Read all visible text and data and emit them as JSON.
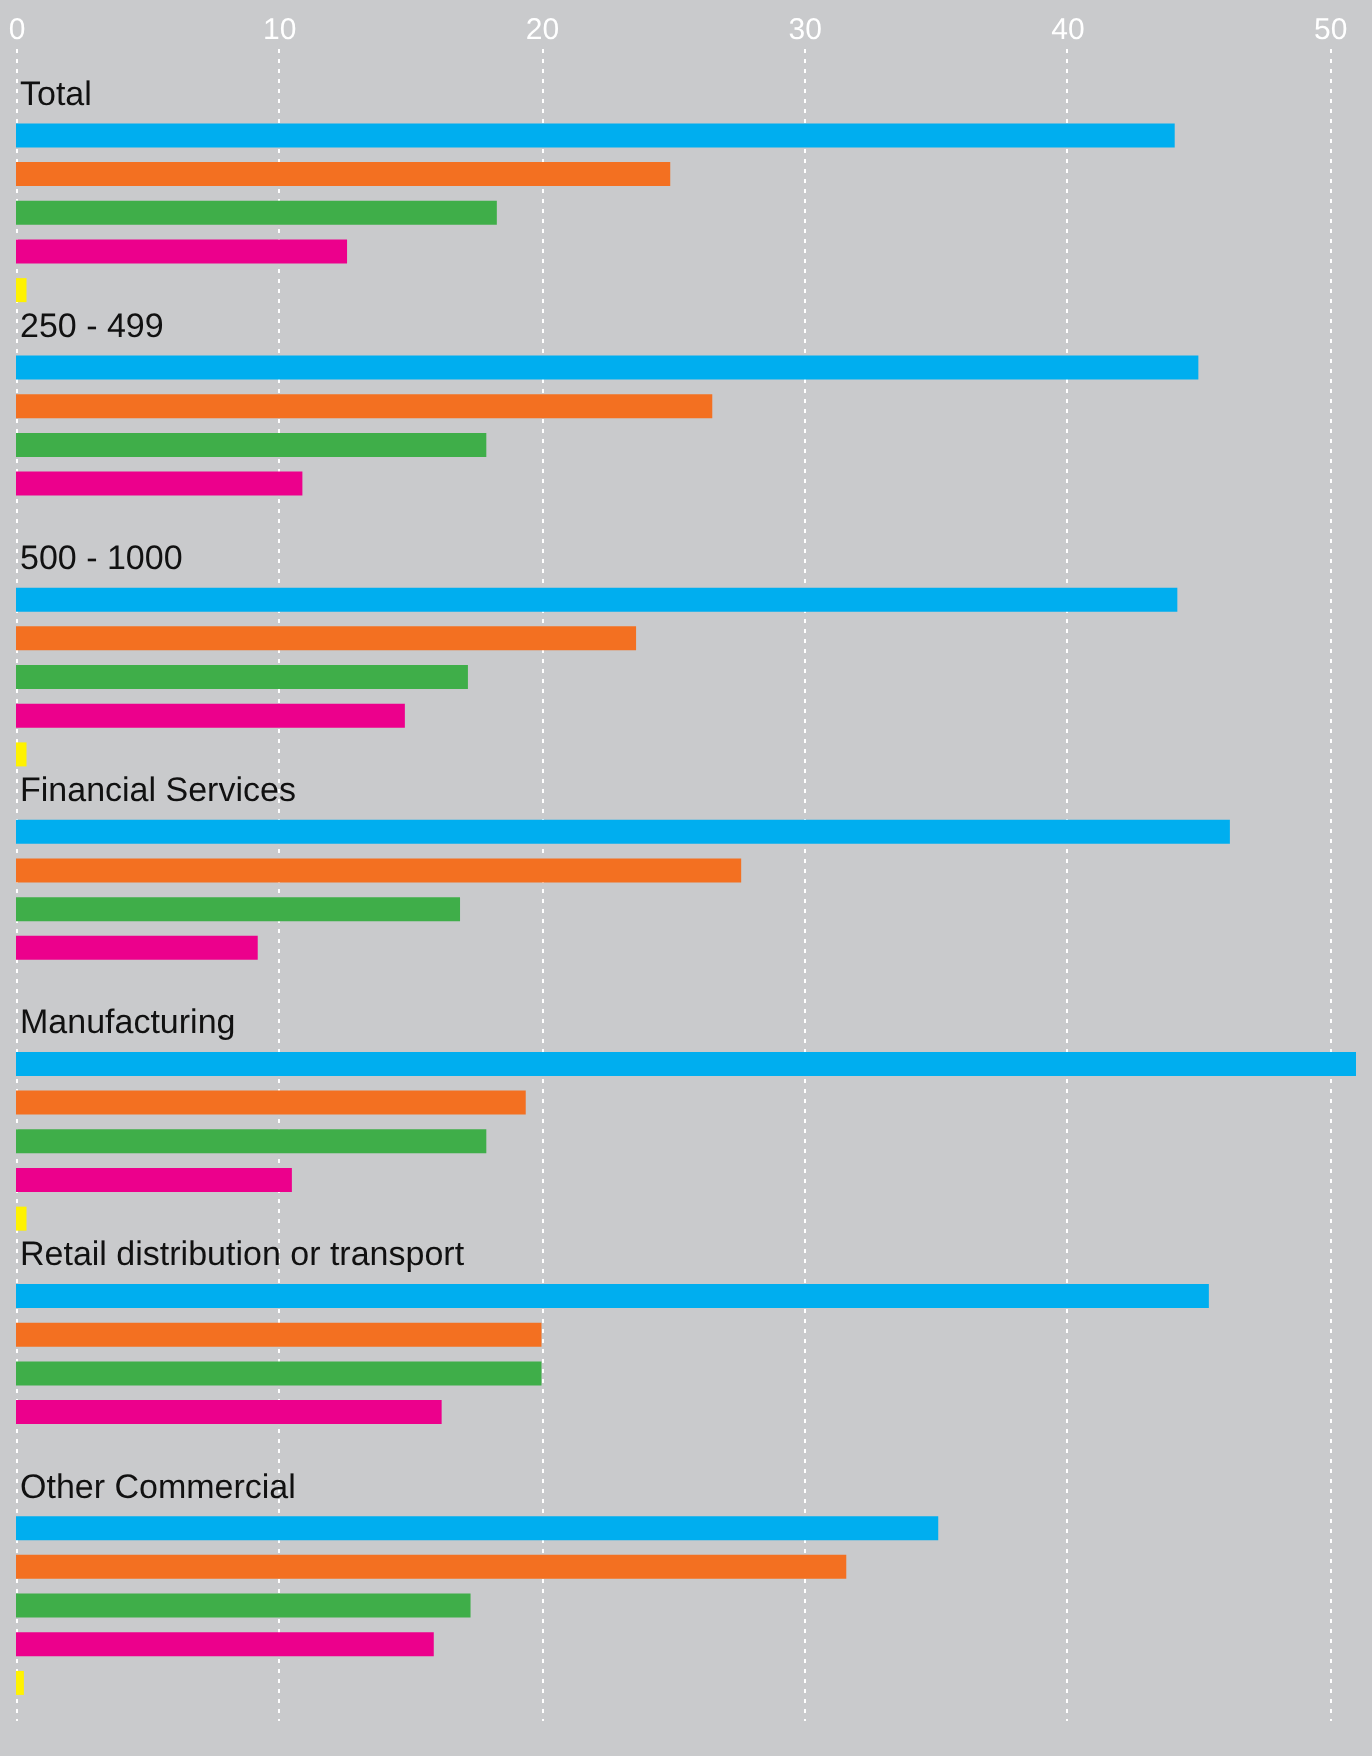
{
  "chart_data": {
    "type": "bar",
    "orientation": "horizontal",
    "categories": [
      "Total",
      "250 - 499",
      "500 - 1000",
      "Financial Services",
      "Manufacturing",
      "Retail distribution or transport",
      "Other Commercial"
    ],
    "series": [
      {
        "color": "#00aeef",
        "values": [
          44.1,
          45.0,
          44.2,
          46.2,
          51,
          45.4,
          35.1
        ]
      },
      {
        "color": "#f37021",
        "values": [
          24.9,
          26.5,
          23.6,
          27.6,
          19.4,
          20.0,
          31.6
        ]
      },
      {
        "color": "#3fae49",
        "values": [
          18.3,
          17.9,
          17.2,
          16.9,
          17.9,
          20.0,
          17.3
        ]
      },
      {
        "color": "#ec008c",
        "values": [
          12.6,
          10.9,
          14.8,
          9.2,
          10.5,
          16.2,
          15.9
        ]
      },
      {
        "color": "#fff200",
        "values": [
          0.4,
          null,
          0.4,
          null,
          0.4,
          null,
          0.3
        ]
      }
    ],
    "xlim": [
      0,
      51
    ],
    "xticks": [
      0,
      10,
      20,
      30,
      40,
      50
    ],
    "grid": "x",
    "tick_labels": "x"
  }
}
